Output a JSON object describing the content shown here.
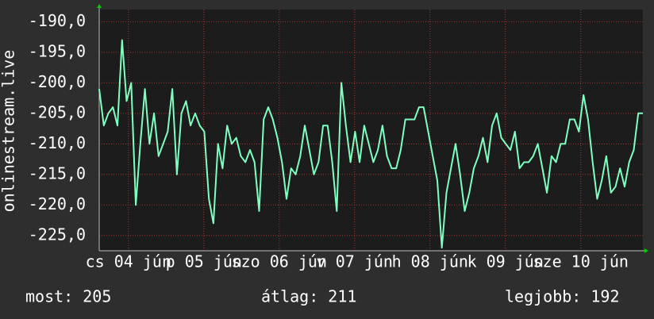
{
  "chart_data": {
    "type": "line",
    "ylabel": "onlinestream.live",
    "color": "#7fffbf",
    "values": [
      -201,
      -207,
      -205,
      -204,
      -207,
      -193,
      -203,
      -200,
      -220,
      -210,
      -201,
      -210,
      -205,
      -212,
      -210,
      -208,
      -201,
      -215,
      -205,
      -203,
      -207,
      -205,
      -207,
      -208,
      -219,
      -223,
      -210,
      -214,
      -207,
      -210,
      -209,
      -212,
      -213,
      -211,
      -213,
      -221,
      -206,
      -204,
      -206,
      -209,
      -213,
      -219,
      -214,
      -215,
      -212,
      -207,
      -211,
      -215,
      -213,
      -207,
      -207,
      -213,
      -221,
      -200,
      -207,
      -213,
      -208,
      -213,
      -207,
      -210,
      -213,
      -211,
      -207,
      -212,
      -214,
      -214,
      -211,
      -206,
      -206,
      -206,
      -204,
      -204,
      -208,
      -212,
      -216,
      -227,
      -218,
      -214,
      -210,
      -215,
      -221,
      -218,
      -214,
      -212,
      -209,
      -213,
      -207,
      -205,
      -209,
      -210,
      -211,
      -208,
      -214,
      -213,
      -213,
      -212,
      -210,
      -214,
      -218,
      -212,
      -213,
      -210,
      -210,
      -206,
      -206,
      -208,
      -202,
      -206,
      -213,
      -219,
      -216,
      -212,
      -218,
      -217,
      -214,
      -217,
      -213,
      -211,
      -205,
      -205
    ],
    "xlim": [
      0,
      119
    ],
    "xticks": [
      {
        "value": 6.4,
        "label": "cs 04 jún"
      },
      {
        "value": 22.9,
        "label": "p 05 jún"
      },
      {
        "value": 39.4,
        "label": "szo 06 jún"
      },
      {
        "value": 55.9,
        "label": "v 07 jún"
      },
      {
        "value": 72.4,
        "label": "h 08 jún"
      },
      {
        "value": 88.9,
        "label": "k 09 jún"
      },
      {
        "value": 105.4,
        "label": "sze 10 jún"
      }
    ],
    "ylim": [
      -227.5,
      -188
    ],
    "yticks": [
      {
        "value": -190,
        "label": "-190,0"
      },
      {
        "value": -195,
        "label": "-195,0"
      },
      {
        "value": -200,
        "label": "-200,0"
      },
      {
        "value": -205,
        "label": "-205,0"
      },
      {
        "value": -210,
        "label": "-210,0"
      },
      {
        "value": -215,
        "label": "-215,0"
      },
      {
        "value": -220,
        "label": "-220,0"
      },
      {
        "value": -225,
        "label": "-225,0"
      }
    ],
    "grid": true,
    "annotations": [
      "most: 205",
      "átlag: 211",
      "legjobb: 192"
    ]
  }
}
